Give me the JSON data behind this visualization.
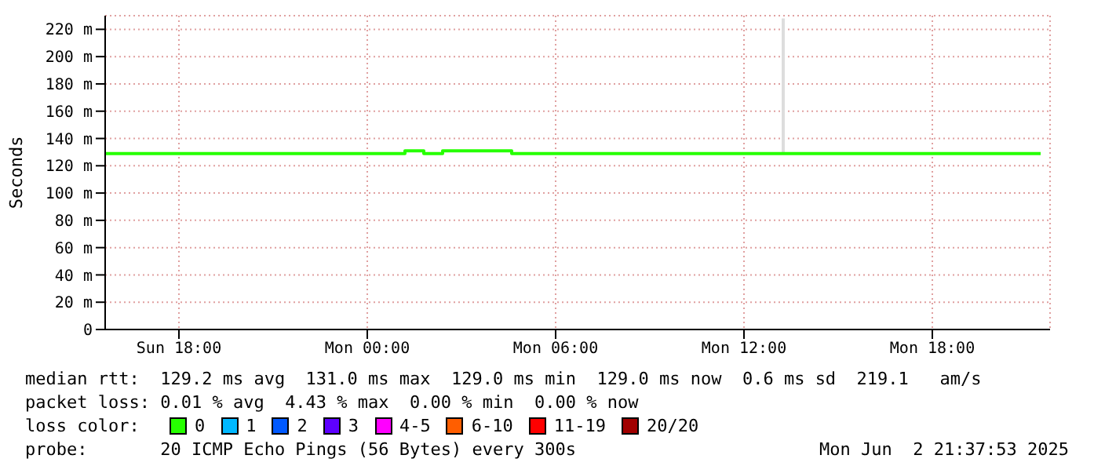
{
  "chart_data": {
    "type": "step",
    "ylabel": "Seconds",
    "grid": true,
    "xlim": [
      "2025-06-01T15:39",
      "2025-06-02T21:45"
    ],
    "xticks": [
      {
        "value": "2025-06-01T18:00",
        "label": "Sun 18:00"
      },
      {
        "value": "2025-06-02T00:00",
        "label": "Mon 00:00"
      },
      {
        "value": "2025-06-02T06:00",
        "label": "Mon 06:00"
      },
      {
        "value": "2025-06-02T12:00",
        "label": "Mon 12:00"
      },
      {
        "value": "2025-06-02T18:00",
        "label": "Mon 18:00"
      }
    ],
    "ylim": [
      0,
      230
    ],
    "yticks": [
      0,
      {
        "value": 20,
        "label": "20 m"
      },
      {
        "value": 40,
        "label": "40 m"
      },
      {
        "value": 60,
        "label": "60 m"
      },
      {
        "value": 80,
        "label": "80 m"
      },
      {
        "value": 100,
        "label": "100 m"
      },
      {
        "value": 120,
        "label": "120 m"
      },
      {
        "value": 140,
        "label": "140 m"
      },
      {
        "value": 160,
        "label": "160 m"
      },
      {
        "value": 180,
        "label": "180 m"
      },
      {
        "value": 200,
        "label": "200 m"
      },
      {
        "value": 220,
        "label": "220 m"
      }
    ],
    "series": [
      {
        "color": "#dddddd",
        "x": [
          "2025-06-02T13:15",
          "2025-06-02T13:15"
        ],
        "values": [
          129,
          228
        ]
      },
      {
        "color": "#26ff00",
        "x": [
          "2025-06-01T15:39",
          "2025-06-02T01:12",
          "2025-06-02T01:48",
          "2025-06-02T02:24",
          "2025-06-02T04:36",
          "2025-06-02T21:27"
        ],
        "values": [
          129,
          131,
          129,
          131,
          129,
          129
        ]
      }
    ],
    "annotations": [
      "median rtt:  129.2 ms avg  131.0 ms max  129.0 ms min  129.0 ms now  0.6 ms sd  219.1   am/s",
      "packet loss: 0.01 % avg  4.43 % max  0.00 % min  0.00 % now",
      "loss color:",
      "0",
      "1",
      "2",
      "3",
      "4-5",
      "6-10",
      "11-19",
      "20/20",
      "probe:       20 ICMP Echo Pings (56 Bytes) every 300s",
      "Mon Jun  2 21:37:53 2025"
    ]
  }
}
